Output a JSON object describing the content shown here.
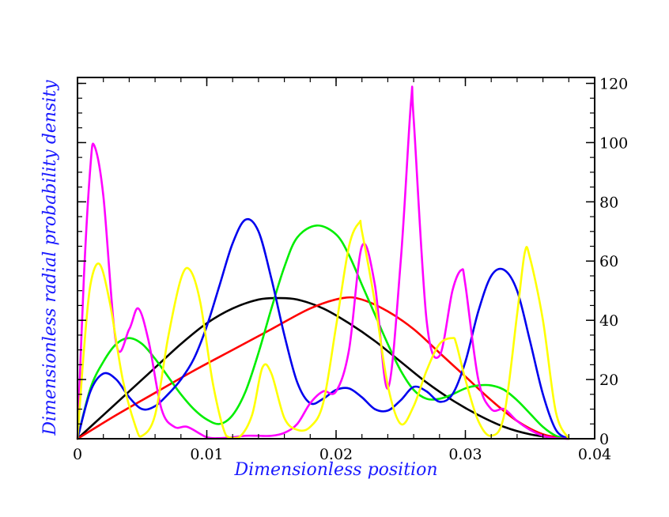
{
  "chart_data": {
    "type": "line",
    "title": "",
    "xlabel": "Dimensionless position",
    "ylabel": "Dimensionless radial probability density",
    "label_color": "#1a1aff",
    "xlim": [
      0,
      0.04
    ],
    "ylim": [
      0,
      122
    ],
    "y_axis_side": "right",
    "grid": false,
    "x_ticks": [
      0,
      0.01,
      0.02,
      0.03,
      0.04
    ],
    "x_tick_labels": [
      "0",
      "0.01",
      "0.02",
      "0.03",
      "0.04"
    ],
    "y_ticks": [
      0,
      20,
      40,
      60,
      80,
      100,
      120
    ],
    "y_tick_labels": [
      "0",
      "20",
      "40",
      "60",
      "80",
      "100",
      "120"
    ],
    "series": [
      {
        "name": "black",
        "color": "#000000",
        "x": [
          0,
          0.002,
          0.004,
          0.006,
          0.008,
          0.01,
          0.012,
          0.014,
          0.0155,
          0.017,
          0.019,
          0.021,
          0.023,
          0.025,
          0.027,
          0.029,
          0.031,
          0.033,
          0.035,
          0.037,
          0.038
        ],
        "y": [
          0,
          8,
          16,
          24,
          32,
          39,
          44,
          47,
          47.5,
          47,
          44,
          39,
          33,
          26,
          19,
          13,
          8,
          4,
          1.5,
          0.3,
          0
        ]
      },
      {
        "name": "red",
        "color": "#ff0000",
        "x": [
          0,
          0.003,
          0.006,
          0.009,
          0.012,
          0.015,
          0.018,
          0.0205,
          0.022,
          0.024,
          0.026,
          0.028,
          0.03,
          0.032,
          0.034,
          0.036,
          0.038
        ],
        "y": [
          0,
          8,
          15.5,
          23,
          30,
          37,
          44,
          47.5,
          47,
          43,
          37,
          29,
          21,
          13,
          6,
          1.5,
          0
        ]
      },
      {
        "name": "green",
        "color": "#00ee00",
        "x": [
          0,
          0.001,
          0.002,
          0.003,
          0.004,
          0.005,
          0.006,
          0.007,
          0.008,
          0.009,
          0.01,
          0.011,
          0.012,
          0.013,
          0.014,
          0.015,
          0.016,
          0.017,
          0.0185,
          0.02,
          0.021,
          0.022,
          0.023,
          0.024,
          0.025,
          0.026,
          0.027,
          0.028,
          0.029,
          0.03,
          0.031,
          0.032,
          0.033,
          0.034,
          0.035,
          0.036,
          0.037,
          0.038
        ],
        "y": [
          0,
          17,
          26,
          32,
          34,
          32,
          27,
          21,
          15,
          10,
          6.5,
          5,
          8,
          16,
          29,
          44,
          58,
          68,
          72,
          69,
          62,
          52,
          42,
          32,
          23,
          16.5,
          13.5,
          13.5,
          15,
          17,
          18,
          18,
          16.5,
          13,
          8.5,
          4,
          1,
          0
        ]
      },
      {
        "name": "blue",
        "color": "#0000ee",
        "x": [
          0,
          0.001,
          0.002,
          0.003,
          0.004,
          0.005,
          0.006,
          0.007,
          0.008,
          0.009,
          0.01,
          0.011,
          0.012,
          0.013,
          0.014,
          0.015,
          0.016,
          0.017,
          0.018,
          0.019,
          0.02,
          0.021,
          0.022,
          0.023,
          0.024,
          0.025,
          0.026,
          0.027,
          0.028,
          0.029,
          0.03,
          0.031,
          0.032,
          0.033,
          0.034,
          0.035,
          0.036,
          0.037,
          0.038
        ],
        "y": [
          0,
          16,
          22,
          20,
          14,
          10,
          11,
          15,
          20,
          27,
          38,
          52,
          66,
          74,
          70,
          54,
          35,
          19,
          12,
          13.5,
          16.5,
          17,
          14,
          10,
          9.5,
          13,
          17.5,
          16,
          12.5,
          15,
          26,
          43,
          55,
          57,
          50,
          33,
          15,
          3,
          0
        ]
      },
      {
        "name": "magenta",
        "color": "#ff00ff",
        "x": [
          0,
          0.0005,
          0.001,
          0.0013,
          0.002,
          0.003,
          0.004,
          0.0047,
          0.0055,
          0.0065,
          0.0075,
          0.0085,
          0.01,
          0.011,
          0.012,
          0.013,
          0.014,
          0.015,
          0.016,
          0.017,
          0.018,
          0.019,
          0.02,
          0.021,
          0.022,
          0.023,
          0.024,
          0.025,
          0.0258,
          0.026,
          0.027,
          0.028,
          0.029,
          0.0297,
          0.03,
          0.031,
          0.032,
          0.033,
          0.034,
          0.035,
          0.036,
          0.037,
          0.038
        ],
        "y": [
          0,
          55,
          92,
          99,
          82,
          32,
          37,
          44,
          33,
          10,
          4,
          4,
          0.5,
          0.2,
          0.5,
          1,
          1,
          1,
          2,
          5,
          12,
          16,
          16,
          30,
          65,
          52,
          17,
          60,
          114,
          108,
          40,
          28,
          50,
          57,
          52,
          20,
          10,
          10,
          6,
          3,
          1,
          0.2,
          0
        ]
      },
      {
        "name": "yellow",
        "color": "#ffff00",
        "x": [
          0,
          0.0005,
          0.001,
          0.0017,
          0.0025,
          0.0035,
          0.0045,
          0.005,
          0.006,
          0.007,
          0.008,
          0.0087,
          0.0095,
          0.0105,
          0.0115,
          0.0125,
          0.0135,
          0.0143,
          0.015,
          0.016,
          0.017,
          0.018,
          0.019,
          0.02,
          0.021,
          0.0218,
          0.022,
          0.023,
          0.024,
          0.025,
          0.026,
          0.027,
          0.028,
          0.029,
          0.0293,
          0.03,
          0.031,
          0.032,
          0.033,
          0.034,
          0.0346,
          0.035,
          0.036,
          0.037,
          0.038
        ],
        "y": [
          0,
          30,
          52,
          59,
          46,
          20,
          4,
          1,
          8,
          34,
          54,
          57,
          46,
          18,
          1,
          0.5,
          8,
          24,
          22,
          7,
          3,
          4,
          12,
          38,
          65,
          73,
          70,
          46,
          18,
          5,
          11,
          23,
          32,
          34,
          32,
          20,
          6,
          1,
          8,
          42,
          63,
          61,
          40,
          9,
          0
        ]
      }
    ]
  }
}
